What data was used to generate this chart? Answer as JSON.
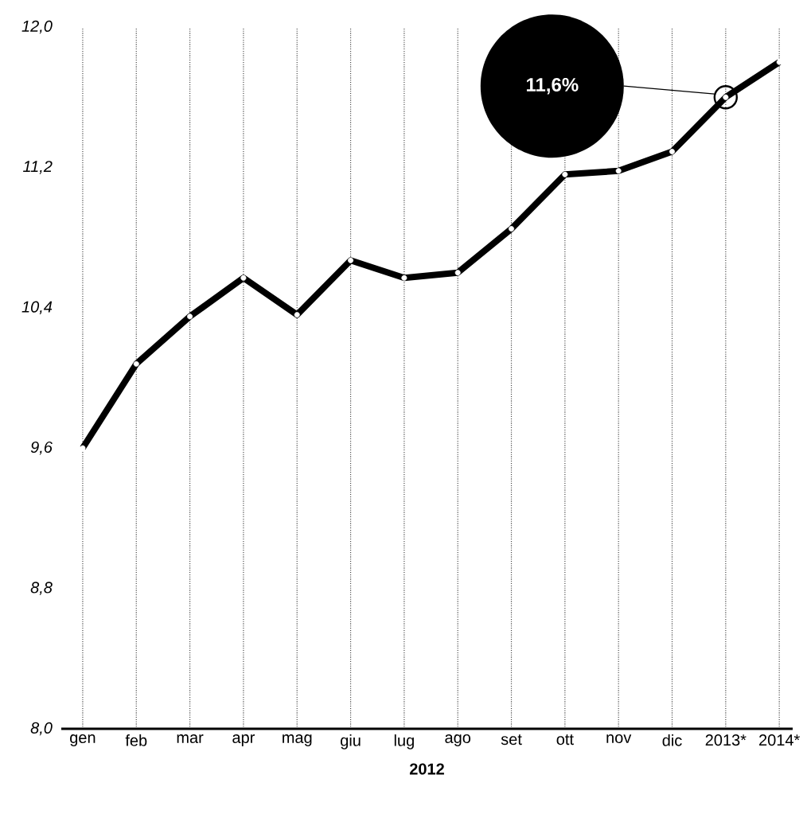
{
  "chart_data": {
    "type": "line",
    "xlabel": "2012",
    "categories": [
      "gen",
      "feb",
      "mar",
      "apr",
      "mag",
      "giu",
      "lug",
      "ago",
      "set",
      "ott",
      "nov",
      "dic",
      "2013*",
      "2014*"
    ],
    "series": [
      {
        "color": "#000000",
        "values": [
          9.6,
          10.08,
          10.35,
          10.57,
          10.36,
          10.67,
          10.57,
          10.6,
          10.85,
          11.16,
          11.18,
          11.29,
          11.6,
          11.8
        ]
      }
    ],
    "ylim": [
      8.0,
      12.0
    ],
    "yticks": [
      {
        "value": 8.0,
        "label": "8,0"
      },
      {
        "value": 8.8,
        "label": "8,8"
      },
      {
        "value": 9.6,
        "label": "9,6"
      },
      {
        "value": 10.4,
        "label": "10,4"
      },
      {
        "value": 11.2,
        "label": "11,2"
      },
      {
        "value": 12.0,
        "label": "12,0"
      }
    ],
    "grid": "x",
    "marker": "circle",
    "line_style": "solid",
    "annotations": [
      "11,6%"
    ]
  }
}
